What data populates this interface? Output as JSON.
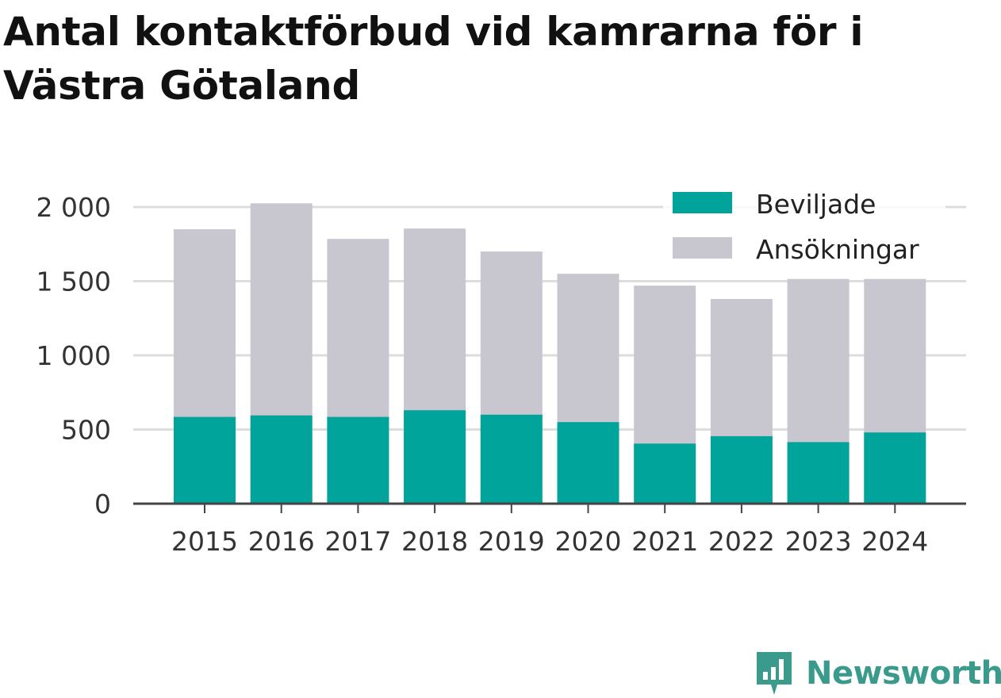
{
  "title": "Antal kontaktförbud vid kamrarna för i Västra Götaland",
  "brand": {
    "name": "Newsworthy",
    "icon": "newsworthy-logo-icon"
  },
  "colors": {
    "granted": "#00a49a",
    "applications": "#c8c7cf",
    "grid": "#dddddd",
    "axis": "#444444",
    "brand": "#3a9a8c"
  },
  "chart_data": {
    "type": "bar",
    "stacked": false,
    "title": "Antal kontaktförbud vid kamrarna för i Västra Götaland",
    "xlabel": "",
    "ylabel": "",
    "categories": [
      "2015",
      "2016",
      "2017",
      "2018",
      "2019",
      "2020",
      "2021",
      "2022",
      "2023",
      "2024"
    ],
    "series": [
      {
        "name": "Ansökningar",
        "values": [
          1850,
          2025,
          1785,
          1855,
          1700,
          1550,
          1470,
          1380,
          1515,
          1515
        ]
      },
      {
        "name": "Beviljade",
        "values": [
          585,
          595,
          585,
          630,
          600,
          550,
          405,
          455,
          415,
          480
        ]
      }
    ],
    "legend": [
      "Beviljade",
      "Ansökningar"
    ],
    "legend_position": "top-right",
    "ylim": [
      0,
      2000
    ],
    "yticks": [
      0,
      500,
      1000,
      1500,
      2000
    ],
    "ytick_labels": [
      "0",
      "500",
      "1 000",
      "1 500",
      "2 000"
    ],
    "grid": true
  }
}
